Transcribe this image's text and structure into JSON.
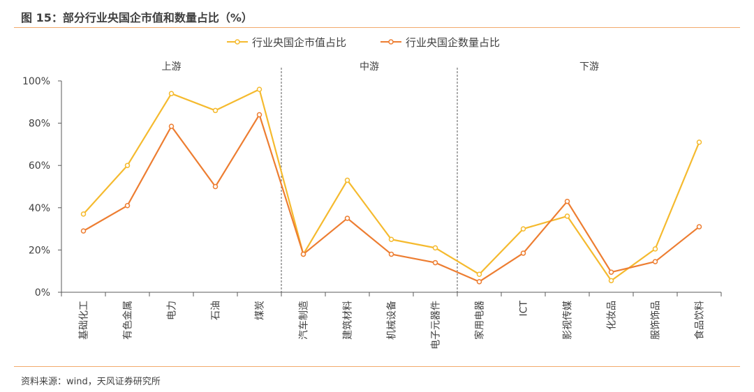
{
  "title": "图 15：部分行业央国企市值和数量占比（%）",
  "source": "资料来源：wind，天风证券研究所",
  "chart_data": {
    "type": "line",
    "categories": [
      "基础化工",
      "有色金属",
      "电力",
      "石油",
      "煤炭",
      "汽车制造",
      "建筑材料",
      "机械设备",
      "电子元器件",
      "家用电器",
      "ICT",
      "影视传媒",
      "化妆品",
      "服饰饰品",
      "食品饮料"
    ],
    "groups": [
      {
        "label": "上游",
        "count": 5
      },
      {
        "label": "中游",
        "count": 4
      },
      {
        "label": "下游",
        "count": 6
      }
    ],
    "series": [
      {
        "name": "行业央国企市值占比",
        "color": "#F5BA2E",
        "values": [
          37,
          60,
          94,
          86,
          96,
          18,
          53,
          25,
          21,
          8.5,
          30,
          36,
          5.5,
          20.5,
          71
        ]
      },
      {
        "name": "行业央国企数量占比",
        "color": "#ED7D31",
        "values": [
          29,
          41,
          78.5,
          50,
          84,
          18,
          35,
          18,
          14,
          5,
          18.5,
          43,
          9.5,
          14.5,
          31
        ]
      }
    ],
    "ylim": [
      0,
      100
    ],
    "yticks": [
      "0%",
      "20%",
      "40%",
      "60%",
      "80%",
      "100%"
    ],
    "legend": "top",
    "grid": false
  }
}
